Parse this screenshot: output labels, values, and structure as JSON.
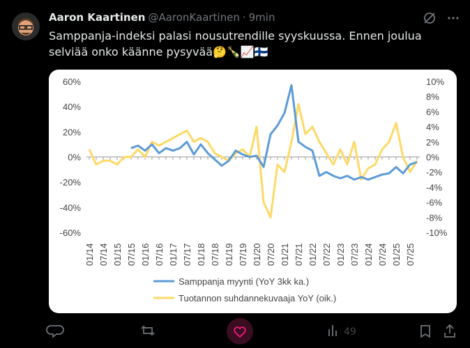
{
  "tweet": {
    "name": "Aaron Kaartinen",
    "handle": "@AaronKaartinen",
    "time": "9min",
    "text": "Samppanja-indeksi palasi nousutrendille syyskuussa. Ennen joulua selviää onko käänne pysyvää🤔🍾📈🇫🇮",
    "views": "49"
  },
  "chart_data": {
    "type": "line",
    "categories": [
      "01/14",
      null,
      "07/14",
      null,
      "01/15",
      null,
      "07/15",
      null,
      "01/16",
      null,
      "07/16",
      null,
      "01/17",
      null,
      "07/17",
      null,
      "01/18",
      null,
      "07/18",
      null,
      "01/19",
      null,
      "07/19",
      null,
      "01/20",
      null,
      "07/20",
      null,
      "01/21",
      null,
      "07/21",
      null,
      "01/22",
      null,
      "07/22",
      null,
      "01/23",
      null,
      "07/23",
      null,
      "01/24",
      null,
      "07/24",
      null,
      "01/25",
      null,
      "07/25",
      null
    ],
    "series": [
      {
        "name": "Samppanja myynti  (YoY 3kk ka.)",
        "color": "#5b9bd5",
        "values": [
          null,
          null,
          null,
          null,
          null,
          null,
          7,
          9,
          5,
          10,
          3,
          7,
          5,
          7,
          12,
          2,
          10,
          3,
          -2,
          -7,
          -3,
          5,
          2,
          0,
          1,
          -8,
          18,
          25,
          35,
          57,
          12,
          8,
          5,
          -15,
          -12,
          -15,
          -17,
          -15,
          -18,
          -16,
          -18,
          -16,
          -14,
          -13,
          -8,
          -13,
          -6,
          -4
        ]
      },
      {
        "name": "Tuotannon suhdannekuvaaja YoY (oik.)",
        "color": "#ffd966",
        "axis": "y2",
        "values": [
          1,
          -1,
          -0.5,
          -0.5,
          -1,
          0,
          0,
          1,
          0,
          2,
          1.5,
          2,
          2.5,
          3,
          3.5,
          2,
          2.5,
          2,
          0.5,
          0,
          -0.5,
          0.5,
          1,
          0,
          4,
          -6,
          -8,
          -1,
          -2,
          2,
          7,
          3,
          4,
          2,
          0.5,
          -1,
          1,
          -1,
          2,
          -3,
          -1.5,
          -1,
          1,
          2,
          4.5,
          0,
          -2,
          -0.5
        ]
      }
    ],
    "ylim": [
      -60,
      60
    ],
    "yticks": [
      {
        "value": -60,
        "label": "-60%"
      },
      {
        "value": -40,
        "label": "-40%"
      },
      {
        "value": -20,
        "label": "-20%"
      },
      {
        "value": 0,
        "label": "0%"
      },
      {
        "value": 20,
        "label": "20%"
      },
      {
        "value": 40,
        "label": "40%"
      },
      {
        "value": 60,
        "label": "60%"
      }
    ],
    "y2lim": [
      -10,
      10
    ],
    "y2ticks": [
      {
        "value": -10,
        "label": "-10%"
      },
      {
        "value": -8,
        "label": "-8%"
      },
      {
        "value": -6,
        "label": "-6%"
      },
      {
        "value": -4,
        "label": "-4%"
      },
      {
        "value": -2,
        "label": "-2%"
      },
      {
        "value": 0,
        "label": "0%"
      },
      {
        "value": 2,
        "label": "2%"
      },
      {
        "value": 4,
        "label": "4%"
      },
      {
        "value": 6,
        "label": "6%"
      },
      {
        "value": 8,
        "label": "8%"
      },
      {
        "value": 10,
        "label": "10%"
      }
    ],
    "grid": false
  }
}
